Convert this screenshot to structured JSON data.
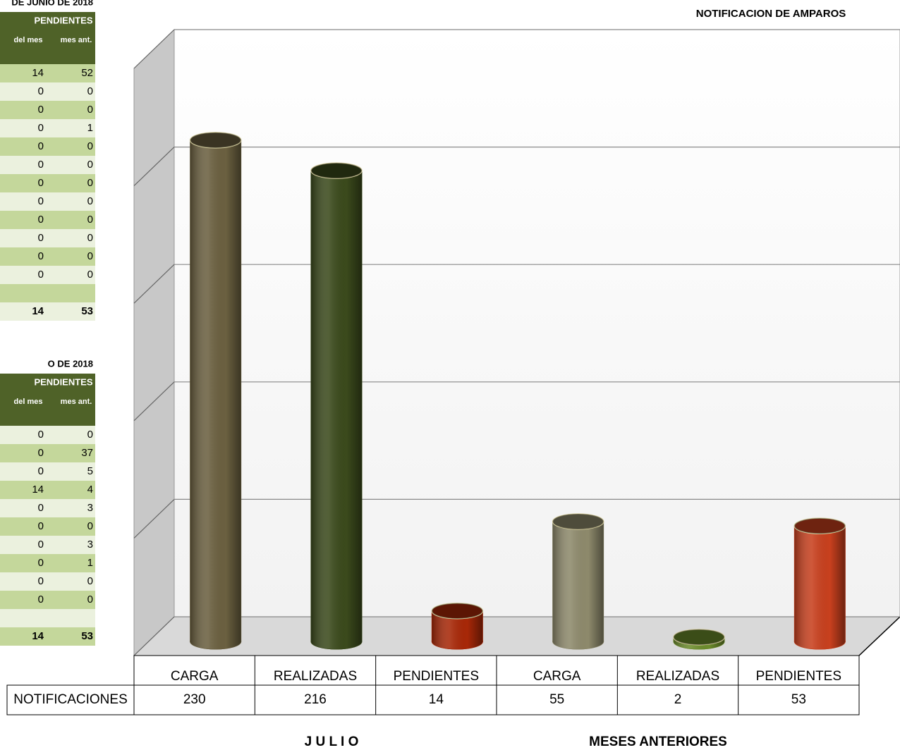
{
  "tables": [
    {
      "title": "DE JUNIO DE 2018",
      "header": "PENDIENTES",
      "columns": [
        "del mes",
        "mes ant."
      ],
      "rows": [
        [
          14,
          52
        ],
        [
          0,
          0
        ],
        [
          0,
          0
        ],
        [
          0,
          1
        ],
        [
          0,
          0
        ],
        [
          0,
          0
        ],
        [
          0,
          0
        ],
        [
          0,
          0
        ],
        [
          0,
          0
        ],
        [
          0,
          0
        ],
        [
          0,
          0
        ],
        [
          0,
          0
        ]
      ],
      "totals": [
        14,
        53
      ]
    },
    {
      "title": "O DE 2018",
      "header": "PENDIENTES",
      "columns": [
        "del mes",
        "mes ant."
      ],
      "rows": [
        [
          0,
          0
        ],
        [
          0,
          37
        ],
        [
          0,
          5
        ],
        [
          14,
          4
        ],
        [
          0,
          3
        ],
        [
          0,
          0
        ],
        [
          0,
          3
        ],
        [
          0,
          1
        ],
        [
          0,
          0
        ],
        [
          0,
          0
        ]
      ],
      "totals": [
        14,
        53
      ]
    }
  ],
  "chart_data": {
    "type": "bar",
    "title": "NOTIFICACION DE AMPAROS",
    "categories": [
      "CARGA",
      "REALIZADAS",
      "PENDIENTES",
      "CARGA",
      "REALIZADAS",
      "PENDIENTES"
    ],
    "series": [
      {
        "name": "NOTIFICACIONES",
        "values": [
          230,
          216,
          14,
          55,
          2,
          53
        ]
      }
    ],
    "colors": [
      "#6b6040",
      "#3b4a1c",
      "#a82808",
      "#8e8a6c",
      "#6c8c2c",
      "#c8401e"
    ],
    "groups": [
      "J U L I O",
      "MESES ANTERIORES"
    ],
    "ylim": [
      0,
      250
    ],
    "yticks": [
      0,
      50,
      100,
      150,
      200,
      250
    ],
    "grid": true
  }
}
